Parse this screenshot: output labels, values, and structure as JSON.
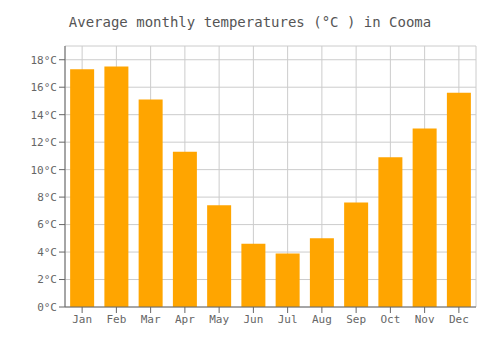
{
  "chart_data": {
    "type": "bar",
    "title": "Average monthly temperatures (°C ) in Cooma",
    "categories": [
      "Jan",
      "Feb",
      "Mar",
      "Apr",
      "May",
      "Jun",
      "Jul",
      "Aug",
      "Sep",
      "Oct",
      "Nov",
      "Dec"
    ],
    "values": [
      17.3,
      17.5,
      15.1,
      11.3,
      7.4,
      4.6,
      3.9,
      5.0,
      7.6,
      10.9,
      13.0,
      15.6
    ],
    "color": "#FFA500",
    "ylim": [
      0,
      19
    ],
    "yticks": [
      {
        "value": 0,
        "label": "0°C"
      },
      {
        "value": 2,
        "label": "2°C"
      },
      {
        "value": 4,
        "label": "4°C"
      },
      {
        "value": 6,
        "label": "6°C"
      },
      {
        "value": 8,
        "label": "8°C"
      },
      {
        "value": 10,
        "label": "10°C"
      },
      {
        "value": 12,
        "label": "12°C"
      },
      {
        "value": 14,
        "label": "14°C"
      },
      {
        "value": 16,
        "label": "16°C"
      },
      {
        "value": 18,
        "label": "18°C"
      }
    ],
    "grid": true
  }
}
